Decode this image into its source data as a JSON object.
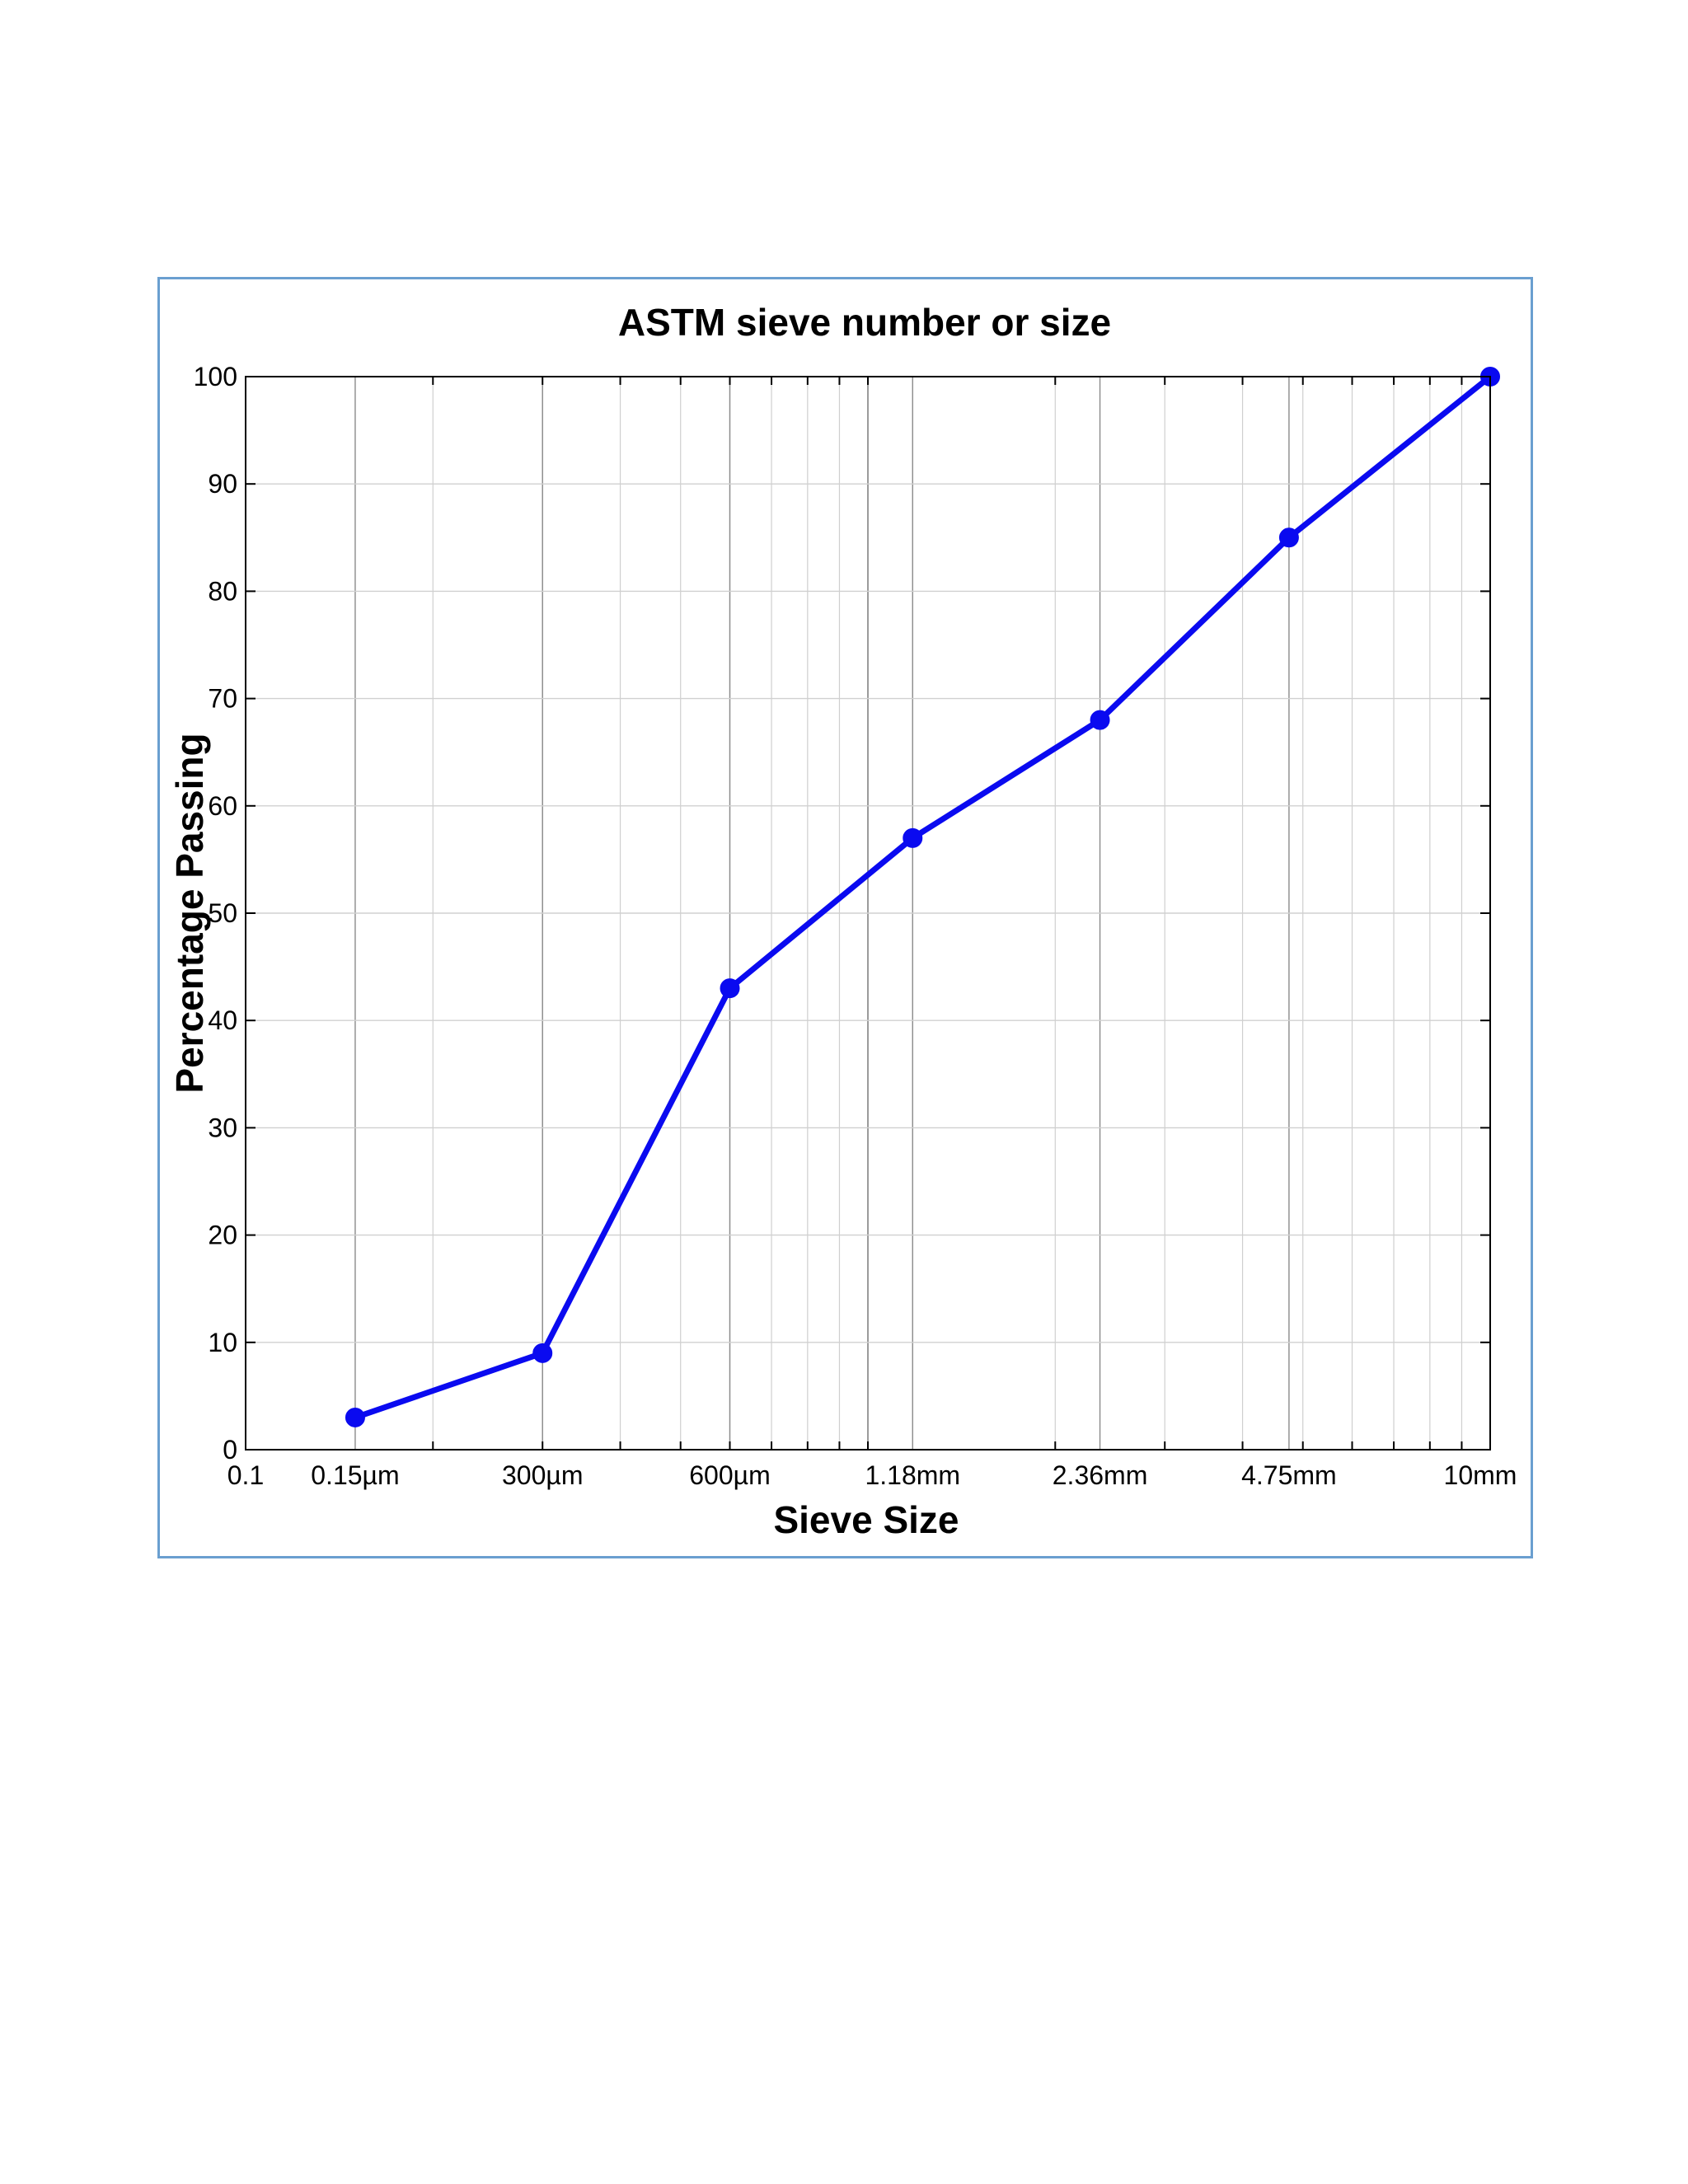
{
  "chart_data": {
    "type": "line",
    "title": "ASTM sieve number or size",
    "xlabel": "Sieve Size",
    "ylabel": "Percentage Passing",
    "x_scale": "log",
    "xlim": [
      0.1,
      10
    ],
    "ylim": [
      0,
      100
    ],
    "x_ticks": [
      {
        "value": 0.1,
        "label": "0.1"
      },
      {
        "value": 0.15,
        "label": "0.15µm"
      },
      {
        "value": 0.3,
        "label": "300µm"
      },
      {
        "value": 0.6,
        "label": "600µm"
      },
      {
        "value": 1.18,
        "label": "1.18mm"
      },
      {
        "value": 2.36,
        "label": "2.36mm"
      },
      {
        "value": 4.75,
        "label": "4.75mm"
      },
      {
        "value": 10,
        "label": "10mm"
      }
    ],
    "y_ticks": [
      0,
      10,
      20,
      30,
      40,
      50,
      60,
      70,
      80,
      90,
      100
    ],
    "grid": true,
    "series": [
      {
        "x": [
          0.15,
          0.3,
          0.6,
          1.18,
          2.36,
          4.75,
          10
        ],
        "y": [
          3,
          9,
          43,
          57,
          68,
          85,
          100
        ],
        "color": "#0a0af0",
        "marker": "circle"
      }
    ]
  }
}
